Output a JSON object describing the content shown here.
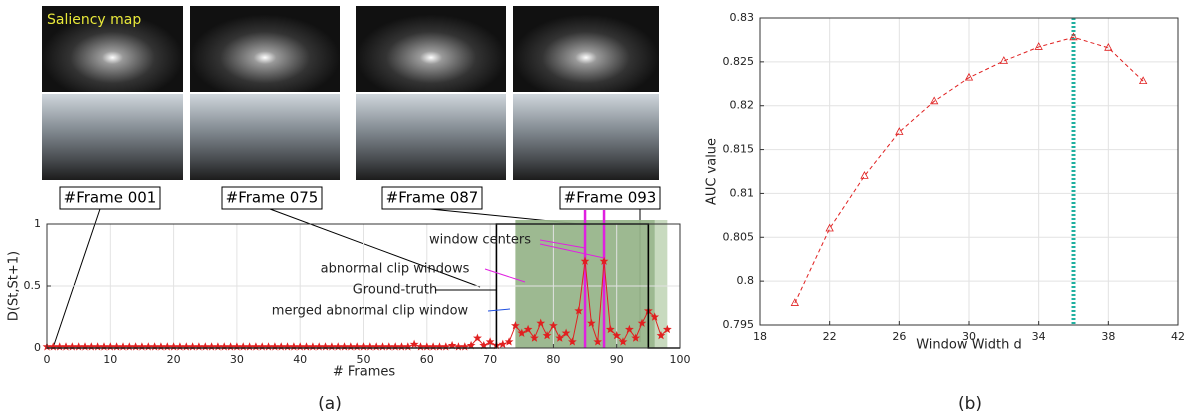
{
  "images": {
    "label": "Saliency map",
    "frames": [
      "#Frame 001",
      "#Frame 075",
      "#Frame 087",
      "#Frame 093"
    ]
  },
  "chart_data": [
    {
      "type": "line",
      "xlabel": "# Frames",
      "ylabel": "D(St,St+1)",
      "caption": "(a)",
      "xlim": [
        0,
        100
      ],
      "ylim": [
        0,
        1
      ],
      "xticks": [
        0,
        10,
        20,
        30,
        40,
        50,
        60,
        70,
        80,
        90,
        100
      ],
      "yticks": [
        0,
        0.5,
        1
      ],
      "grid": true,
      "series": [
        {
          "color": "#e02020",
          "marker": "star",
          "x": [
            0,
            1,
            2,
            3,
            4,
            5,
            6,
            7,
            8,
            9,
            10,
            11,
            12,
            13,
            14,
            15,
            16,
            17,
            18,
            19,
            20,
            21,
            22,
            23,
            24,
            25,
            26,
            27,
            28,
            29,
            30,
            31,
            32,
            33,
            34,
            35,
            36,
            37,
            38,
            39,
            40,
            41,
            42,
            43,
            44,
            45,
            46,
            47,
            48,
            49,
            50,
            51,
            52,
            53,
            54,
            55,
            56,
            57,
            58,
            59,
            60,
            61,
            62,
            63,
            64,
            65,
            66,
            67,
            68,
            69,
            70,
            71,
            72,
            73,
            74,
            75,
            76,
            77,
            78,
            79,
            80,
            81,
            82,
            83,
            84,
            85,
            86,
            87,
            88,
            89,
            90,
            91,
            92,
            93,
            94,
            95,
            96,
            97,
            98
          ],
          "values": [
            0.01,
            0.01,
            0.01,
            0.01,
            0.01,
            0.01,
            0.01,
            0.01,
            0.01,
            0.01,
            0.01,
            0.01,
            0.01,
            0.01,
            0.01,
            0.01,
            0.01,
            0.01,
            0.01,
            0.01,
            0.01,
            0.01,
            0.01,
            0.01,
            0.01,
            0.01,
            0.01,
            0.01,
            0.01,
            0.01,
            0.01,
            0.01,
            0.01,
            0.01,
            0.01,
            0.01,
            0.01,
            0.01,
            0.01,
            0.01,
            0.01,
            0.01,
            0.01,
            0.01,
            0.01,
            0.01,
            0.01,
            0.01,
            0.01,
            0.01,
            0.01,
            0.01,
            0.01,
            0.01,
            0.01,
            0.01,
            0.01,
            0.01,
            0.03,
            0.01,
            0.01,
            0.01,
            0.01,
            0.01,
            0.02,
            0.01,
            0.01,
            0.02,
            0.08,
            0.02,
            0.05,
            0.02,
            0.03,
            0.05,
            0.18,
            0.12,
            0.15,
            0.08,
            0.2,
            0.1,
            0.18,
            0.08,
            0.12,
            0.05,
            0.3,
            0.7,
            0.2,
            0.05,
            0.7,
            0.15,
            0.1,
            0.05,
            0.15,
            0.08,
            0.2,
            0.3,
            0.25,
            0.1,
            0.15
          ]
        },
        {
          "name": "Ground-truth",
          "color": "#000000",
          "x": [
            0,
            71,
            71,
            95,
            95,
            100
          ],
          "values": [
            0,
            0,
            1,
            1,
            0,
            0
          ]
        }
      ],
      "spans": [
        {
          "label": "merged abnormal clip window",
          "color": "#b5ceaa",
          "label_color": "#1f4fe0",
          "x": [
            74,
            98
          ]
        },
        {
          "label": "abnormal clip windows",
          "color": "#8fae82",
          "label_color": "#e020e0",
          "x": [
            74,
            96
          ]
        }
      ],
      "vlines": {
        "label": "window centers",
        "color": "#e020e0",
        "x": [
          85,
          88
        ]
      }
    },
    {
      "type": "line",
      "xlabel": "Window Width d",
      "ylabel": "AUC value",
      "caption": "(b)",
      "xlim": [
        18,
        42
      ],
      "ylim": [
        0.795,
        0.83
      ],
      "xticks": [
        18,
        22,
        26,
        30,
        34,
        38,
        42
      ],
      "yticks": [
        0.795,
        0.8,
        0.805,
        0.81,
        0.815,
        0.82,
        0.825,
        0.83
      ],
      "grid": true,
      "series": [
        {
          "color": "#e02020",
          "marker": "triangle",
          "dashed": true,
          "x": [
            20,
            22,
            24,
            26,
            28,
            30,
            32,
            34,
            36,
            38,
            40
          ],
          "values": [
            0.7975,
            0.806,
            0.812,
            0.817,
            0.8205,
            0.8232,
            0.8251,
            0.8267,
            0.8278,
            0.8266,
            0.8228
          ]
        }
      ],
      "vlines": {
        "color": "#20b0a0",
        "x": [
          36
        ]
      }
    }
  ]
}
